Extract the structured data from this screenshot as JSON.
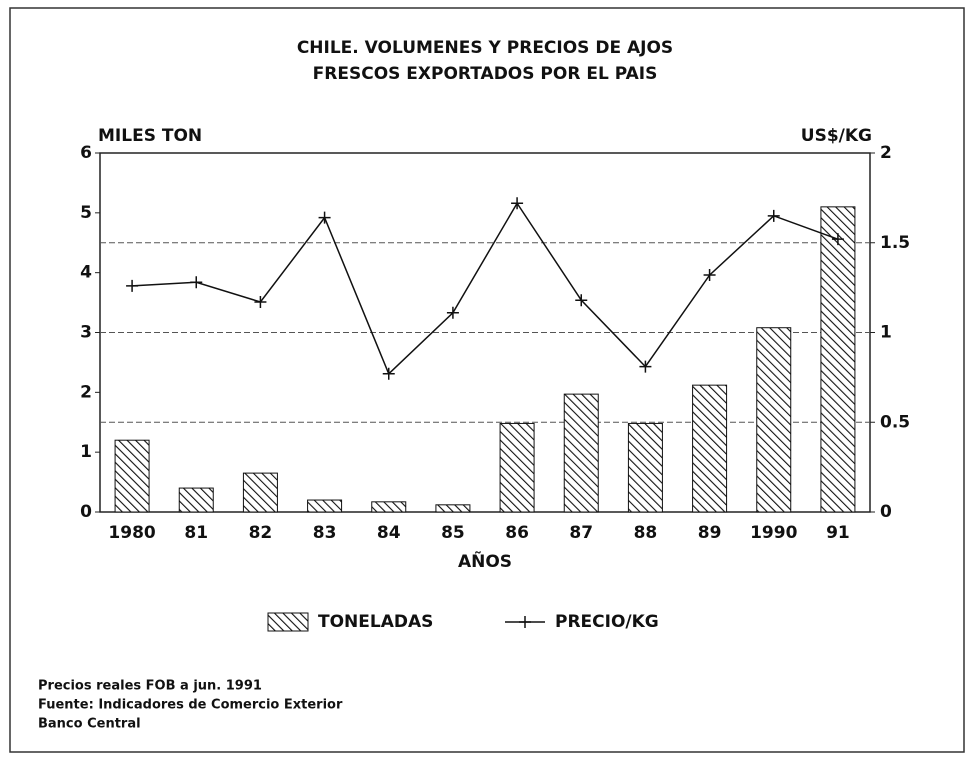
{
  "chart_data": {
    "type": "bar-line",
    "title": [
      "CHILE. VOLUMENES Y PRECIOS DE AJOS",
      "FRESCOS EXPORTADOS POR EL PAIS"
    ],
    "y_label": "MILES TON",
    "y2_label": "US$/KG",
    "x_label": "AÑOS",
    "categories": [
      "1980",
      "81",
      "82",
      "83",
      "84",
      "85",
      "86",
      "87",
      "88",
      "89",
      "1990",
      "91"
    ],
    "series": [
      {
        "name": "TONELADAS",
        "type": "bar",
        "color": "#111111",
        "values": [
          1.2,
          0.4,
          0.65,
          0.2,
          0.17,
          0.12,
          1.48,
          1.97,
          1.48,
          2.12,
          3.08,
          5.1
        ]
      },
      {
        "name": "PRECIO/KG",
        "type": "line",
        "axis": "y2",
        "color": "#111111",
        "values": [
          1.26,
          1.28,
          1.17,
          1.64,
          0.77,
          1.11,
          1.72,
          1.18,
          0.81,
          1.32,
          1.65,
          1.52
        ]
      }
    ],
    "ylim": [
      0,
      6
    ],
    "yticks": [
      0,
      1,
      2,
      3,
      4,
      5,
      6
    ],
    "y2lim": [
      0,
      2
    ],
    "y2ticks": [
      0,
      0.5,
      1,
      1.5,
      2
    ],
    "grid": true,
    "legend": "bottom",
    "notes": [
      "Precios reales FOB a jun. 1991",
      "Fuente: Indicadores de Comercio Exterior",
      "Banco Central"
    ]
  }
}
